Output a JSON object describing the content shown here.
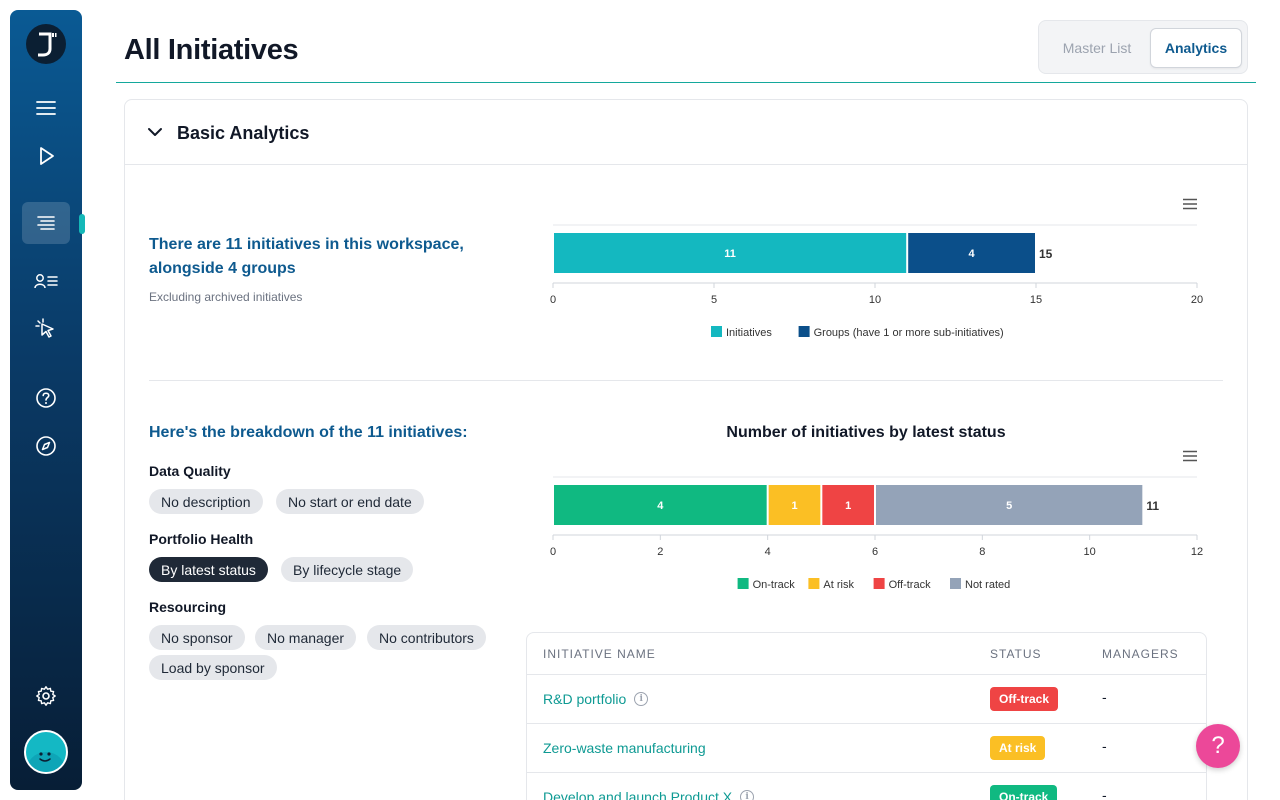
{
  "page": {
    "title": "All Initiatives"
  },
  "view_toggle": {
    "master_label": "Master List",
    "analytics_label": "Analytics"
  },
  "card": {
    "title": "Basic Analytics"
  },
  "summary": {
    "line1": "There are 11 initiatives in this workspace,",
    "line2": "alongside 4 groups",
    "subtitle": "Excluding archived initiatives"
  },
  "breakdown": {
    "title": "Here's the breakdown of the 11 initiatives:",
    "data_quality": {
      "label": "Data Quality",
      "chips": [
        "No description",
        "No start or end date"
      ]
    },
    "portfolio_health": {
      "label": "Portfolio Health",
      "chips": [
        "By latest status",
        "By lifecycle stage"
      ],
      "selected": "By latest status"
    },
    "resourcing": {
      "label": "Resourcing",
      "chips": [
        "No sponsor",
        "No manager",
        "No contributors",
        "Load by sponsor"
      ]
    }
  },
  "chart_data": [
    {
      "type": "bar",
      "orientation": "horizontal",
      "stacked": true,
      "title": "",
      "series": [
        {
          "name": "Initiatives",
          "values": [
            11
          ],
          "color": "#14b8c0"
        },
        {
          "name": "Groups (have 1 or more sub-initiatives)",
          "values": [
            4
          ],
          "color": "#0b4f8a"
        }
      ],
      "total_label": "15",
      "xlim": [
        0,
        20
      ],
      "xticks": [
        "0",
        "5",
        "10",
        "15",
        "20"
      ],
      "legend": "bottom"
    },
    {
      "type": "bar",
      "orientation": "horizontal",
      "stacked": true,
      "title": "Number of initiatives by latest status",
      "series": [
        {
          "name": "On-track",
          "values": [
            4
          ],
          "color": "#10b981"
        },
        {
          "name": "At risk",
          "values": [
            1
          ],
          "color": "#fbbf24"
        },
        {
          "name": "Off-track",
          "values": [
            1
          ],
          "color": "#ef4444"
        },
        {
          "name": "Not rated",
          "values": [
            5
          ],
          "color": "#94a3b8"
        }
      ],
      "total_label": "11",
      "xlim": [
        0,
        12
      ],
      "xticks": [
        "0",
        "2",
        "4",
        "6",
        "8",
        "10",
        "12"
      ],
      "legend": "bottom"
    }
  ],
  "table": {
    "headers": {
      "name": "INITIATIVE NAME",
      "status": "STATUS",
      "managers": "MANAGERS"
    },
    "rows": [
      {
        "name": "R&D portfolio",
        "info": true,
        "status": "Off-track",
        "status_color": "#ef4444",
        "managers": "-"
      },
      {
        "name": "Zero-waste manufacturing",
        "info": false,
        "status": "At risk",
        "status_color": "#fbbf24",
        "managers": "-"
      },
      {
        "name": "Develop and launch Product X",
        "info": true,
        "status": "On-track",
        "status_color": "#10b981",
        "managers": "-"
      }
    ]
  },
  "help": {
    "label": "?"
  }
}
